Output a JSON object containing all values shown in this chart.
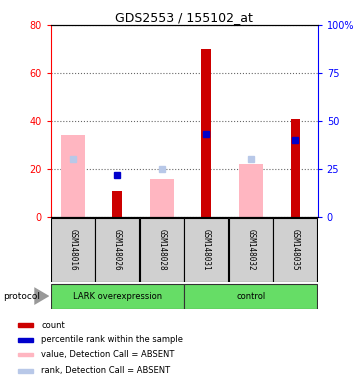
{
  "title": "GDS2553 / 155102_at",
  "samples": [
    "GSM148016",
    "GSM148026",
    "GSM148028",
    "GSM148031",
    "GSM148032",
    "GSM148035"
  ],
  "left_ylim": [
    0,
    80
  ],
  "right_ylim": [
    0,
    100
  ],
  "left_yticks": [
    0,
    20,
    40,
    60,
    80
  ],
  "right_yticks": [
    0,
    25,
    50,
    75,
    100
  ],
  "right_yticklabels": [
    "0",
    "25",
    "50",
    "75",
    "100%"
  ],
  "red_bars": [
    null,
    11,
    null,
    70,
    null,
    41
  ],
  "pink_bars": [
    34,
    null,
    16,
    null,
    22,
    null
  ],
  "blue_squares_right": [
    null,
    22,
    null,
    43,
    null,
    40
  ],
  "light_blue_squares_right": [
    30,
    null,
    25,
    null,
    30,
    null
  ],
  "lark_group_label": "LARK overexpression",
  "control_group_label": "control",
  "protocol_label": "protocol",
  "green_color": "#66dd66",
  "gray_color": "#d0d0d0",
  "legend_items": [
    {
      "label": "count",
      "color": "#cc0000"
    },
    {
      "label": "percentile rank within the sample",
      "color": "#0000cc"
    },
    {
      "label": "value, Detection Call = ABSENT",
      "color": "#ffb6c1"
    },
    {
      "label": "rank, Detection Call = ABSENT",
      "color": "#b8c8e8"
    }
  ]
}
